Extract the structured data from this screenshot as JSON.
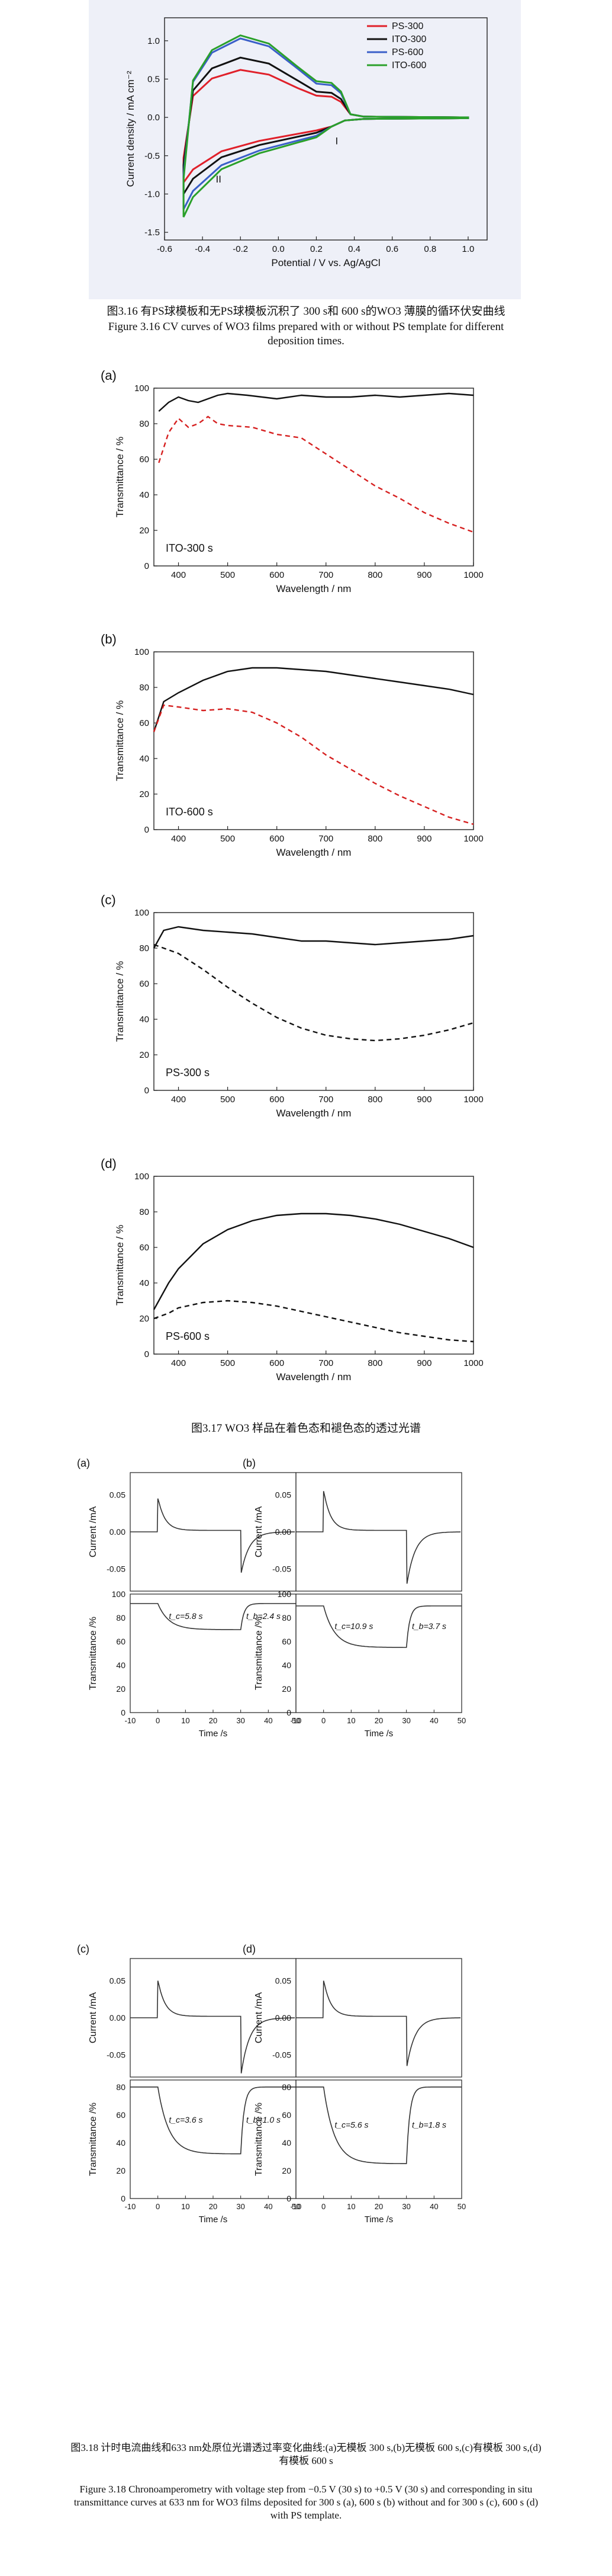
{
  "figure_3_16": {
    "caption_cn": "图3.16 有PS球模板和无PS球模板沉积了 300 s和 600 s的WO3 薄膜的循环伏安曲线",
    "caption_en": "Figure 3.16 CV curves of WO3 films prepared with or without PS template for different deposition times."
  },
  "figure_3_17": {
    "caption_cn": "图3.17 WO3 样品在着色态和褪色态的透过光谱"
  },
  "figure_3_18": {
    "caption_cn": "图3.18 计时电流曲线和633 nm处原位光谱透过率变化曲线:(a)无模板 300 s,(b)无模板 600 s,(c)有模板 300 s,(d)有模板 600 s",
    "caption_en": "Figure 3.18 Chronoamperometry with voltage step from −0.5 V (30 s) to +0.5 V (30 s) and corresponding in situ transmittance curves at 633 nm for WO3 films deposited for 300 s (a), 600 s (b) without and for 300 s (c), 600 s (d) with PS template."
  },
  "chart_data": [
    {
      "id": "cv",
      "type": "line",
      "title": "",
      "xlabel": "Potential / V vs. Ag/AgCl",
      "ylabel": "Current density / mA cm⁻²",
      "xlim": [
        -0.6,
        1.1
      ],
      "ylim": [
        -1.6,
        1.3
      ],
      "xticks": [
        "-0.6",
        "-0.4",
        "-0.2",
        "0.0",
        "0.2",
        "0.4",
        "0.6",
        "0.8",
        "1.0"
      ],
      "yticks": [
        "-1.5",
        "-1.0",
        "-0.5",
        "0.0",
        "0.5",
        "1.0"
      ],
      "legend_position": "top-right",
      "annotations": [
        "I",
        "II"
      ],
      "series": [
        {
          "name": "PS-300",
          "color": "#e0202a",
          "anodic_peak": 0.62,
          "shoulder": 0.27,
          "cathodic_min": -0.85
        },
        {
          "name": "ITO-300",
          "color": "#111111",
          "anodic_peak": 0.78,
          "shoulder": 0.32,
          "cathodic_min": -1.0
        },
        {
          "name": "PS-600",
          "color": "#3a5fc8",
          "anodic_peak": 1.03,
          "shoulder": 0.42,
          "cathodic_min": -1.2
        },
        {
          "name": "ITO-600",
          "color": "#2aa02a",
          "anodic_peak": 1.07,
          "shoulder": 0.45,
          "cathodic_min": -1.3
        }
      ]
    },
    {
      "id": "t-a",
      "type": "line",
      "panel_label": "(a)",
      "inner_label": "ITO-300 s",
      "xlabel": "Wavelength / nm",
      "ylabel": "Transmittance / %",
      "xlim": [
        350,
        1000
      ],
      "ylim": [
        0,
        100
      ],
      "xticks": [
        "400",
        "500",
        "600",
        "700",
        "800",
        "900",
        "1000"
      ],
      "yticks": [
        "0",
        "20",
        "40",
        "60",
        "80",
        "100"
      ],
      "series": [
        {
          "style": "solid",
          "x": [
            360,
            380,
            400,
            420,
            440,
            460,
            480,
            500,
            540,
            600,
            650,
            700,
            750,
            800,
            850,
            900,
            950,
            1000
          ],
          "y": [
            87,
            92,
            95,
            93,
            92,
            94,
            96,
            97,
            96,
            94,
            96,
            95,
            95,
            96,
            95,
            96,
            97,
            96
          ]
        },
        {
          "style": "dashed",
          "x": [
            360,
            380,
            400,
            420,
            440,
            460,
            480,
            500,
            550,
            600,
            650,
            700,
            750,
            800,
            850,
            900,
            950,
            1000
          ],
          "y": [
            58,
            75,
            83,
            78,
            80,
            84,
            80,
            79,
            78,
            74,
            72,
            63,
            54,
            45,
            38,
            30,
            24,
            19
          ]
        }
      ]
    },
    {
      "id": "t-b",
      "type": "line",
      "panel_label": "(b)",
      "inner_label": "ITO-600 s",
      "xlabel": "Wavelength / nm",
      "ylabel": "Transmittance / %",
      "xlim": [
        350,
        1000
      ],
      "ylim": [
        0,
        100
      ],
      "xticks": [
        "400",
        "500",
        "600",
        "700",
        "800",
        "900",
        "1000"
      ],
      "yticks": [
        "0",
        "20",
        "40",
        "60",
        "80",
        "100"
      ],
      "series": [
        {
          "style": "solid",
          "x": [
            350,
            370,
            400,
            450,
            500,
            550,
            600,
            650,
            700,
            750,
            800,
            850,
            900,
            950,
            1000
          ],
          "y": [
            55,
            72,
            77,
            84,
            89,
            91,
            91,
            90,
            89,
            87,
            85,
            83,
            81,
            79,
            76
          ]
        },
        {
          "style": "dashed",
          "x": [
            350,
            370,
            400,
            450,
            500,
            550,
            600,
            650,
            700,
            750,
            800,
            850,
            900,
            950,
            1000
          ],
          "y": [
            55,
            70,
            69,
            67,
            68,
            66,
            60,
            52,
            42,
            34,
            26,
            19,
            13,
            7,
            3
          ]
        }
      ]
    },
    {
      "id": "t-c",
      "type": "line",
      "panel_label": "(c)",
      "inner_label": "PS-300 s",
      "xlabel": "Wavelength / nm",
      "ylabel": "Transmittance / %",
      "xlim": [
        350,
        1000
      ],
      "ylim": [
        0,
        100
      ],
      "xticks": [
        "400",
        "500",
        "600",
        "700",
        "800",
        "900",
        "1000"
      ],
      "yticks": [
        "0",
        "20",
        "40",
        "60",
        "80",
        "100"
      ],
      "series": [
        {
          "style": "solid",
          "x": [
            350,
            370,
            400,
            450,
            500,
            550,
            600,
            650,
            700,
            750,
            800,
            850,
            900,
            950,
            1000
          ],
          "y": [
            80,
            90,
            92,
            90,
            89,
            88,
            86,
            84,
            84,
            83,
            82,
            83,
            84,
            85,
            87
          ]
        },
        {
          "style": "dashed",
          "x": [
            350,
            400,
            450,
            500,
            550,
            600,
            650,
            700,
            750,
            800,
            850,
            900,
            950,
            1000
          ],
          "y": [
            82,
            77,
            68,
            58,
            49,
            41,
            35,
            31,
            29,
            28,
            29,
            31,
            34,
            38
          ]
        }
      ]
    },
    {
      "id": "t-d",
      "type": "line",
      "panel_label": "(d)",
      "inner_label": "PS-600 s",
      "xlabel": "Wavelength / nm",
      "ylabel": "Transmittance / %",
      "xlim": [
        350,
        1000
      ],
      "ylim": [
        0,
        100
      ],
      "xticks": [
        "400",
        "500",
        "600",
        "700",
        "800",
        "900",
        "1000"
      ],
      "yticks": [
        "0",
        "20",
        "40",
        "60",
        "80",
        "100"
      ],
      "series": [
        {
          "style": "solid",
          "x": [
            350,
            380,
            400,
            450,
            500,
            550,
            600,
            650,
            700,
            750,
            800,
            850,
            900,
            950,
            1000
          ],
          "y": [
            25,
            40,
            48,
            62,
            70,
            75,
            78,
            79,
            79,
            78,
            76,
            73,
            69,
            65,
            60
          ]
        },
        {
          "style": "dashed",
          "x": [
            350,
            380,
            400,
            450,
            500,
            550,
            600,
            650,
            700,
            750,
            800,
            850,
            900,
            950,
            1000
          ],
          "y": [
            20,
            23,
            26,
            29,
            30,
            29,
            27,
            24,
            21,
            18,
            15,
            12,
            10,
            8,
            7
          ]
        }
      ]
    },
    {
      "id": "ca",
      "type": "line",
      "panels": [
        {
          "label": "(a)",
          "tc_text": "t_c=5.8 s",
          "tb_text": "t_b=2.4 s",
          "low": 70,
          "high": 92,
          "spike_pos": 0.045,
          "spike_neg": -0.055
        },
        {
          "label": "(b)",
          "tc_text": "t_c=10.9 s",
          "tb_text": "t_b=3.7 s",
          "low": 55,
          "high": 90,
          "spike_pos": 0.055,
          "spike_neg": -0.07
        },
        {
          "label": "(c)",
          "tc_text": "t_c=3.6 s",
          "tb_text": "t_b=1.0 s",
          "low": 32,
          "high": 80,
          "spike_pos": 0.05,
          "spike_neg": -0.075
        },
        {
          "label": "(d)",
          "tc_text": "t_c=5.6 s",
          "tb_text": "t_b=1.8 s",
          "low": 25,
          "high": 80,
          "spike_pos": 0.05,
          "spike_neg": -0.065
        }
      ],
      "xlabel": "Time /s",
      "current_ylabel": "Current /mA",
      "trans_ylabel": "Transmittance /%",
      "xlim": [
        -10,
        50
      ],
      "xticks": [
        "-10",
        "0",
        "10",
        "20",
        "30",
        "40",
        "50"
      ],
      "current_yticks": [
        "-0.05",
        "0.00",
        "0.05"
      ],
      "trans_yticks_ab": [
        "0",
        "20",
        "40",
        "60",
        "80",
        "100"
      ],
      "trans_yticks_cd": [
        "0",
        "20",
        "40",
        "60",
        "80"
      ]
    }
  ]
}
